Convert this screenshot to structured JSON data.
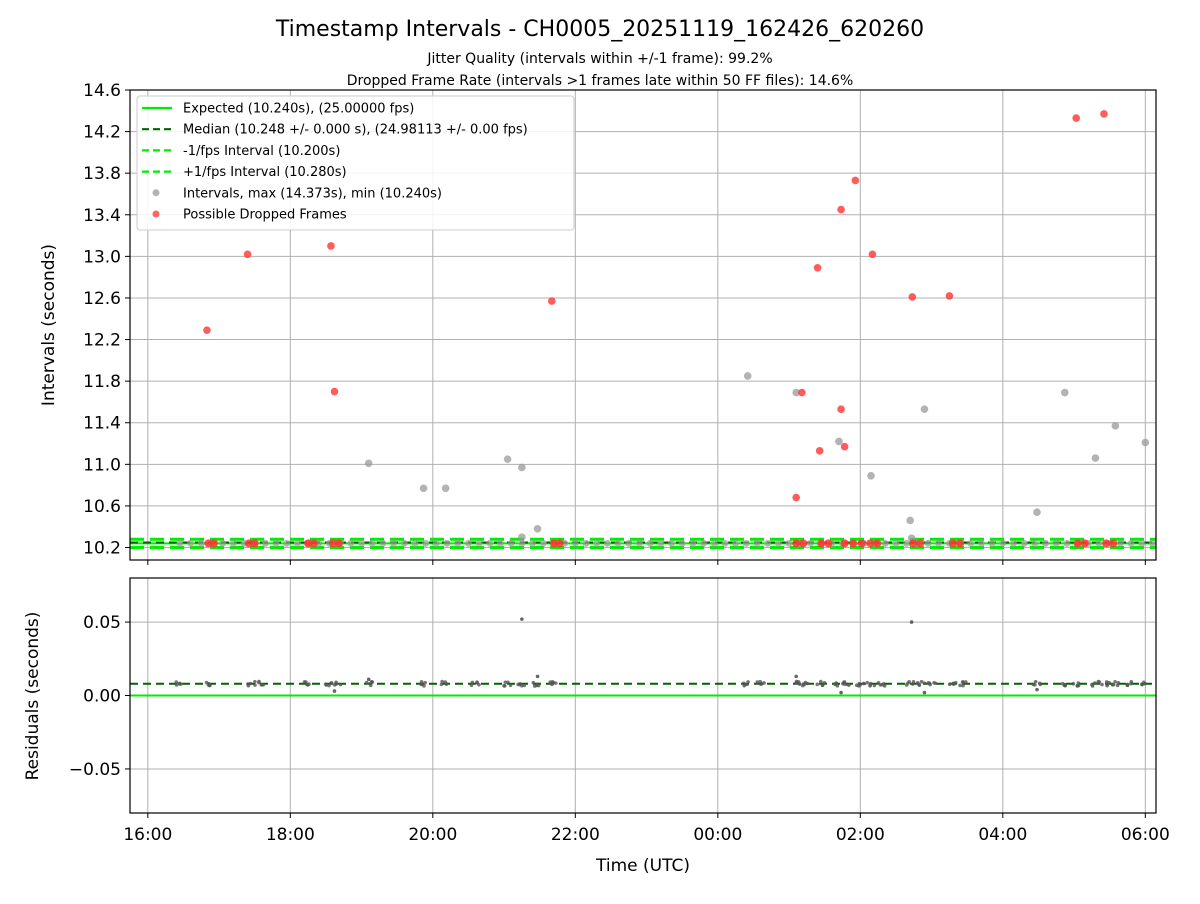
{
  "chart_data": [
    {
      "type": "scatter",
      "title": "Timestamp Intervals - CH0005_20251119_162426_620260",
      "subtitle1": "Jitter Quality (intervals within +/-1 frame): 99.2%",
      "subtitle2": "Dropped Frame Rate (intervals >1 frames late within 50 FF files): 14.6%",
      "xlabel": "",
      "ylabel": "Intervals (seconds)",
      "xlim": [
        15.75,
        30.15
      ],
      "ylim": [
        10.08,
        14.6
      ],
      "yticks": [
        10.2,
        10.6,
        11.0,
        11.4,
        11.8,
        12.2,
        12.6,
        13.0,
        13.4,
        13.8,
        14.2,
        14.6
      ],
      "ytick_labels": [
        "10.2",
        "10.6",
        "11.0",
        "11.4",
        "11.8",
        "12.2",
        "12.6",
        "13.0",
        "13.4",
        "13.8",
        "14.2",
        "14.6"
      ],
      "grid": true,
      "lines": [
        {
          "name": "Expected (10.240s), (25.00000 fps)",
          "y": 10.24,
          "color": "#00ee00",
          "style": "solid",
          "width": 2
        },
        {
          "name": "Median (10.248 +/- 0.000 s), (24.98113 +/- 0.00 fps)",
          "y": 10.248,
          "color": "#006400",
          "style": "dashed",
          "width": 2
        },
        {
          "name": "-1/fps Interval (10.200s)",
          "y": 10.2,
          "color": "#00ee00",
          "style": "dashed",
          "width": 3
        },
        {
          "name": "+1/fps Interval (10.280s)",
          "y": 10.28,
          "color": "#00ee00",
          "style": "dashed",
          "width": 3
        }
      ],
      "series": [
        {
          "name": "Intervals, max (14.373s), min (10.240s)",
          "color": "#999999",
          "points": [
            [
              19.1,
              11.01
            ],
            [
              19.87,
              10.77
            ],
            [
              20.18,
              10.77
            ],
            [
              21.05,
              11.05
            ],
            [
              21.25,
              10.97
            ],
            [
              21.25,
              10.3
            ],
            [
              21.47,
              10.38
            ],
            [
              24.42,
              11.85
            ],
            [
              25.1,
              11.69
            ],
            [
              25.7,
              11.22
            ],
            [
              26.15,
              10.89
            ],
            [
              26.7,
              10.46
            ],
            [
              26.72,
              10.29
            ],
            [
              26.9,
              11.53
            ],
            [
              28.48,
              10.54
            ],
            [
              28.87,
              11.69
            ],
            [
              29.3,
              11.06
            ],
            [
              29.58,
              11.37
            ],
            [
              30.0,
              11.21
            ]
          ]
        },
        {
          "name": "Possible Dropped Frames",
          "color": "#ff3333",
          "points": [
            [
              16.83,
              12.29
            ],
            [
              17.4,
              13.02
            ],
            [
              18.57,
              13.1
            ],
            [
              18.62,
              11.7
            ],
            [
              21.67,
              12.57
            ],
            [
              25.1,
              10.68
            ],
            [
              25.18,
              11.69
            ],
            [
              25.4,
              12.89
            ],
            [
              25.73,
              13.45
            ],
            [
              25.73,
              11.53
            ],
            [
              25.78,
              11.17
            ],
            [
              25.43,
              11.13
            ],
            [
              25.93,
              13.73
            ],
            [
              26.17,
              13.02
            ],
            [
              26.73,
              12.61
            ],
            [
              27.25,
              12.62
            ],
            [
              29.03,
              14.33
            ],
            [
              29.42,
              14.37
            ]
          ]
        }
      ],
      "baseline_dropped_times": [
        16.85,
        16.93,
        17.42,
        17.5,
        18.25,
        18.33,
        18.6,
        18.68,
        21.7,
        21.78,
        25.1,
        25.2,
        25.45,
        25.55,
        25.78,
        25.9,
        26.02,
        26.14,
        26.24,
        26.74,
        26.84,
        27.3,
        27.4,
        29.05,
        29.15,
        29.45,
        29.55
      ]
    },
    {
      "type": "scatter",
      "title": "",
      "xlabel": "Time (UTC)",
      "ylabel": "Residuals (seconds)",
      "xlim": [
        15.75,
        30.15
      ],
      "ylim": [
        -0.08,
        0.08
      ],
      "xticks": [
        16,
        18,
        20,
        22,
        24,
        26,
        28,
        30
      ],
      "xtick_labels": [
        "16:00",
        "18:00",
        "20:00",
        "22:00",
        "00:00",
        "02:00",
        "04:00",
        "06:00"
      ],
      "yticks": [
        -0.05,
        0.0,
        0.05
      ],
      "ytick_labels": [
        "−0.05",
        "0.00",
        "0.05"
      ],
      "grid": true,
      "lines": [
        {
          "name": "expected",
          "y": 0.0,
          "color": "#00ee00",
          "style": "solid",
          "width": 2
        },
        {
          "name": "median",
          "y": 0.008,
          "color": "#006400",
          "style": "dashed",
          "width": 2
        }
      ],
      "series": [
        {
          "name": "Residuals",
          "color": "#555555",
          "outliers": [
            [
              21.25,
              0.052
            ],
            [
              26.72,
              0.05
            ],
            [
              19.1,
              0.011
            ],
            [
              21.47,
              0.013
            ],
            [
              25.1,
              0.013
            ],
            [
              18.62,
              0.003
            ],
            [
              25.73,
              0.002
            ],
            [
              26.9,
              0.002
            ],
            [
              28.48,
              0.004
            ]
          ]
        }
      ]
    }
  ],
  "legend": {
    "entries": [
      {
        "label": "Expected (10.240s), (25.00000 fps)",
        "kind": "line-solid",
        "color": "#00ee00"
      },
      {
        "label": "Median (10.248 +/- 0.000 s), (24.98113 +/- 0.00 fps)",
        "kind": "line-dashed",
        "color": "#006400"
      },
      {
        "label": "-1/fps Interval (10.200s)",
        "kind": "line-dashed",
        "color": "#00ee00"
      },
      {
        "label": "+1/fps Interval (10.280s)",
        "kind": "line-dashed",
        "color": "#00ee00"
      },
      {
        "label": "Intervals, max (14.373s), min (10.240s)",
        "kind": "dot",
        "color": "#999999"
      },
      {
        "label": "Possible Dropped Frames",
        "kind": "dot",
        "color": "#ff3333"
      }
    ]
  }
}
